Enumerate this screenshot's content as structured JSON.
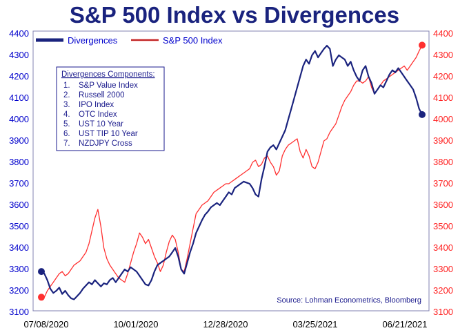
{
  "chart_data": {
    "type": "line",
    "title": "S&P 500 Index vs Divergences",
    "x": [
      "07/08/2020",
      "10/01/2020",
      "12/28/2020",
      "03/25/2021",
      "06/21/2021"
    ],
    "x_tick_labels": [
      "07/08/2020",
      "10/01/2020",
      "12/28/2020",
      "03/25/2021",
      "06/21/2021"
    ],
    "y_left_ticks": [
      "4400",
      "4300",
      "4200",
      "4100",
      "4000",
      "3900",
      "3800",
      "3700",
      "3600",
      "3500",
      "3400",
      "3300",
      "3200",
      "3100"
    ],
    "y_right_ticks": [
      "4400",
      "4300",
      "4200",
      "4100",
      "4000",
      "3900",
      "3800",
      "3700",
      "3600",
      "3500",
      "3400",
      "3300",
      "3200",
      "3100"
    ],
    "ylim": [
      3100,
      4400
    ],
    "legend": [
      {
        "name": "Divergences",
        "color": "#1a237e"
      },
      {
        "name": "S&P 500 Index",
        "color": "#ff3030"
      }
    ],
    "box_title": "Divergences Components:",
    "components": [
      {
        "num": "1.",
        "name": "S&P Value Index"
      },
      {
        "num": "2.",
        "name": "Russell 2000"
      },
      {
        "num": "3.",
        "name": "IPO Index"
      },
      {
        "num": "4.",
        "name": "OTC Index"
      },
      {
        "num": "5.",
        "name": "UST 10 Year"
      },
      {
        "num": "6.",
        "name": "UST TIP 10 Year"
      },
      {
        "num": "7.",
        "name": "NZDJPY Cross"
      }
    ],
    "source": "Source: Lohman Econometrics, Bloomberg",
    "series": [
      {
        "name": "Divergences",
        "color": "#1a237e",
        "points": [
          [
            0,
            3290
          ],
          [
            2,
            3280
          ],
          [
            4,
            3250
          ],
          [
            6,
            3210
          ],
          [
            8,
            3190
          ],
          [
            10,
            3200
          ],
          [
            12,
            3215
          ],
          [
            14,
            3185
          ],
          [
            16,
            3200
          ],
          [
            18,
            3180
          ],
          [
            20,
            3165
          ],
          [
            22,
            3160
          ],
          [
            24,
            3175
          ],
          [
            26,
            3190
          ],
          [
            28,
            3210
          ],
          [
            30,
            3225
          ],
          [
            32,
            3240
          ],
          [
            34,
            3230
          ],
          [
            36,
            3250
          ],
          [
            38,
            3235
          ],
          [
            40,
            3220
          ],
          [
            42,
            3235
          ],
          [
            44,
            3230
          ],
          [
            46,
            3250
          ],
          [
            48,
            3260
          ],
          [
            50,
            3240
          ],
          [
            52,
            3260
          ],
          [
            54,
            3280
          ],
          [
            56,
            3300
          ],
          [
            58,
            3290
          ],
          [
            60,
            3310
          ],
          [
            62,
            3300
          ],
          [
            64,
            3290
          ],
          [
            66,
            3270
          ],
          [
            68,
            3250
          ],
          [
            70,
            3230
          ],
          [
            72,
            3225
          ],
          [
            74,
            3250
          ],
          [
            76,
            3290
          ],
          [
            78,
            3320
          ],
          [
            80,
            3330
          ],
          [
            82,
            3340
          ],
          [
            84,
            3350
          ],
          [
            86,
            3360
          ],
          [
            88,
            3380
          ],
          [
            90,
            3400
          ],
          [
            92,
            3360
          ],
          [
            94,
            3300
          ],
          [
            96,
            3280
          ],
          [
            98,
            3330
          ],
          [
            100,
            3380
          ],
          [
            102,
            3420
          ],
          [
            104,
            3470
          ],
          [
            106,
            3500
          ],
          [
            108,
            3530
          ],
          [
            110,
            3555
          ],
          [
            112,
            3570
          ],
          [
            114,
            3590
          ],
          [
            116,
            3600
          ],
          [
            118,
            3610
          ],
          [
            120,
            3600
          ],
          [
            122,
            3620
          ],
          [
            124,
            3640
          ],
          [
            126,
            3660
          ],
          [
            128,
            3650
          ],
          [
            130,
            3680
          ],
          [
            132,
            3690
          ],
          [
            134,
            3700
          ],
          [
            136,
            3710
          ],
          [
            138,
            3705
          ],
          [
            140,
            3700
          ],
          [
            142,
            3680
          ],
          [
            144,
            3650
          ],
          [
            146,
            3640
          ],
          [
            148,
            3720
          ],
          [
            150,
            3780
          ],
          [
            152,
            3850
          ],
          [
            154,
            3870
          ],
          [
            156,
            3880
          ],
          [
            158,
            3860
          ],
          [
            160,
            3890
          ],
          [
            162,
            3920
          ],
          [
            164,
            3950
          ],
          [
            166,
            4000
          ],
          [
            168,
            4050
          ],
          [
            170,
            4100
          ],
          [
            172,
            4150
          ],
          [
            174,
            4200
          ],
          [
            176,
            4250
          ],
          [
            178,
            4280
          ],
          [
            180,
            4260
          ],
          [
            182,
            4300
          ],
          [
            184,
            4320
          ],
          [
            186,
            4290
          ],
          [
            188,
            4310
          ],
          [
            190,
            4330
          ],
          [
            192,
            4345
          ],
          [
            194,
            4330
          ],
          [
            196,
            4250
          ],
          [
            198,
            4280
          ],
          [
            200,
            4300
          ],
          [
            202,
            4290
          ],
          [
            204,
            4280
          ],
          [
            206,
            4250
          ],
          [
            208,
            4270
          ],
          [
            210,
            4230
          ],
          [
            212,
            4200
          ],
          [
            214,
            4180
          ],
          [
            216,
            4230
          ],
          [
            218,
            4250
          ],
          [
            220,
            4200
          ],
          [
            222,
            4170
          ],
          [
            224,
            4120
          ],
          [
            226,
            4140
          ],
          [
            228,
            4160
          ],
          [
            230,
            4150
          ],
          [
            232,
            4180
          ],
          [
            234,
            4210
          ],
          [
            236,
            4230
          ],
          [
            238,
            4220
          ],
          [
            240,
            4240
          ],
          [
            242,
            4220
          ],
          [
            244,
            4200
          ],
          [
            246,
            4180
          ],
          [
            248,
            4160
          ],
          [
            250,
            4140
          ],
          [
            252,
            4100
          ],
          [
            254,
            4050
          ],
          [
            256,
            4023
          ]
        ]
      },
      {
        "name": "S&P 500 Index",
        "color": "#ff3030",
        "points": [
          [
            0,
            3170
          ],
          [
            2,
            3170
          ],
          [
            4,
            3200
          ],
          [
            6,
            3220
          ],
          [
            8,
            3240
          ],
          [
            10,
            3260
          ],
          [
            12,
            3280
          ],
          [
            14,
            3290
          ],
          [
            16,
            3270
          ],
          [
            18,
            3280
          ],
          [
            20,
            3300
          ],
          [
            22,
            3320
          ],
          [
            24,
            3330
          ],
          [
            26,
            3340
          ],
          [
            28,
            3360
          ],
          [
            30,
            3380
          ],
          [
            32,
            3420
          ],
          [
            34,
            3480
          ],
          [
            36,
            3540
          ],
          [
            38,
            3580
          ],
          [
            40,
            3500
          ],
          [
            42,
            3400
          ],
          [
            44,
            3350
          ],
          [
            46,
            3320
          ],
          [
            48,
            3300
          ],
          [
            50,
            3280
          ],
          [
            52,
            3260
          ],
          [
            54,
            3250
          ],
          [
            56,
            3240
          ],
          [
            58,
            3280
          ],
          [
            60,
            3330
          ],
          [
            62,
            3380
          ],
          [
            64,
            3420
          ],
          [
            66,
            3470
          ],
          [
            68,
            3450
          ],
          [
            70,
            3420
          ],
          [
            72,
            3440
          ],
          [
            74,
            3400
          ],
          [
            76,
            3360
          ],
          [
            78,
            3330
          ],
          [
            80,
            3290
          ],
          [
            82,
            3320
          ],
          [
            84,
            3380
          ],
          [
            86,
            3430
          ],
          [
            88,
            3460
          ],
          [
            90,
            3440
          ],
          [
            92,
            3380
          ],
          [
            94,
            3300
          ],
          [
            96,
            3290
          ],
          [
            98,
            3350
          ],
          [
            100,
            3420
          ],
          [
            102,
            3490
          ],
          [
            104,
            3560
          ],
          [
            106,
            3580
          ],
          [
            108,
            3600
          ],
          [
            110,
            3610
          ],
          [
            112,
            3620
          ],
          [
            114,
            3640
          ],
          [
            116,
            3660
          ],
          [
            118,
            3670
          ],
          [
            120,
            3680
          ],
          [
            122,
            3690
          ],
          [
            124,
            3700
          ],
          [
            126,
            3700
          ],
          [
            128,
            3710
          ],
          [
            130,
            3720
          ],
          [
            132,
            3730
          ],
          [
            134,
            3740
          ],
          [
            136,
            3750
          ],
          [
            138,
            3760
          ],
          [
            140,
            3770
          ],
          [
            142,
            3800
          ],
          [
            144,
            3810
          ],
          [
            146,
            3780
          ],
          [
            148,
            3790
          ],
          [
            150,
            3820
          ],
          [
            152,
            3830
          ],
          [
            154,
            3800
          ],
          [
            156,
            3780
          ],
          [
            158,
            3740
          ],
          [
            160,
            3760
          ],
          [
            162,
            3830
          ],
          [
            164,
            3860
          ],
          [
            166,
            3880
          ],
          [
            168,
            3890
          ],
          [
            170,
            3900
          ],
          [
            172,
            3910
          ],
          [
            174,
            3850
          ],
          [
            176,
            3820
          ],
          [
            178,
            3860
          ],
          [
            180,
            3830
          ],
          [
            182,
            3780
          ],
          [
            184,
            3770
          ],
          [
            186,
            3800
          ],
          [
            188,
            3850
          ],
          [
            190,
            3900
          ],
          [
            192,
            3910
          ],
          [
            194,
            3940
          ],
          [
            196,
            3960
          ],
          [
            198,
            3980
          ],
          [
            200,
            4020
          ],
          [
            202,
            4060
          ],
          [
            204,
            4090
          ],
          [
            206,
            4110
          ],
          [
            208,
            4130
          ],
          [
            210,
            4160
          ],
          [
            212,
            4180
          ],
          [
            214,
            4180
          ],
          [
            216,
            4170
          ],
          [
            218,
            4180
          ],
          [
            220,
            4200
          ],
          [
            222,
            4150
          ],
          [
            224,
            4120
          ],
          [
            226,
            4140
          ],
          [
            228,
            4160
          ],
          [
            230,
            4180
          ],
          [
            232,
            4190
          ],
          [
            234,
            4200
          ],
          [
            236,
            4210
          ],
          [
            238,
            4220
          ],
          [
            240,
            4230
          ],
          [
            242,
            4240
          ],
          [
            244,
            4250
          ],
          [
            246,
            4230
          ],
          [
            248,
            4250
          ],
          [
            250,
            4270
          ],
          [
            252,
            4290
          ],
          [
            254,
            4320
          ],
          [
            256,
            4347
          ]
        ]
      }
    ]
  }
}
